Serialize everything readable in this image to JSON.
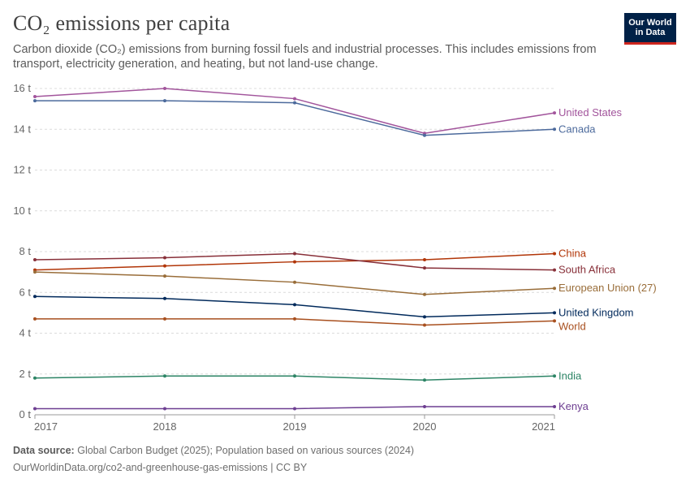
{
  "header": {
    "title": "CO₂ emissions per capita",
    "subtitle": "Carbon dioxide (CO₂) emissions from burning fossil fuels and industrial processes. This includes emissions from transport, electricity generation, and heating, but not land-use change.",
    "logo_line1": "Our World",
    "logo_line2": "in Data",
    "logo_bg": "#002147",
    "logo_accent": "#ce261e"
  },
  "footer": {
    "source_label": "Data source:",
    "source_text": "Global Carbon Budget (2025); Population based on various sources (2024)",
    "url_text": "OurWorldinData.org/co2-and-greenhouse-gas-emissions",
    "license_text": "| CC BY"
  },
  "chart_data": {
    "type": "line",
    "title": "CO₂ emissions per capita",
    "x": [
      2017,
      2018,
      2019,
      2020,
      2021
    ],
    "ylim": [
      0,
      16
    ],
    "yticks": [
      0,
      2,
      4,
      6,
      8,
      10,
      12,
      14,
      16
    ],
    "ytick_labels": [
      "0 t",
      "2 t",
      "4 t",
      "6 t",
      "8 t",
      "10 t",
      "12 t",
      "14 t",
      "16 t"
    ],
    "xtick_labels": [
      "2017",
      "2018",
      "2019",
      "2020",
      "2021"
    ],
    "grid": "horizontal dashed",
    "legend": "right (labels at line ends)",
    "series": [
      {
        "name": "United States",
        "color": "#a2559c",
        "values": [
          15.6,
          16.0,
          15.5,
          13.8,
          14.8
        ]
      },
      {
        "name": "Canada",
        "color": "#4c6a9c",
        "values": [
          15.4,
          15.4,
          15.3,
          13.7,
          14.0
        ]
      },
      {
        "name": "China",
        "color": "#b13507",
        "values": [
          7.1,
          7.3,
          7.5,
          7.6,
          7.9
        ]
      },
      {
        "name": "South Africa",
        "color": "#883039",
        "values": [
          7.6,
          7.7,
          7.9,
          7.2,
          7.1
        ]
      },
      {
        "name": "European Union (27)",
        "color": "#996d39",
        "values": [
          7.0,
          6.8,
          6.5,
          5.9,
          6.2
        ]
      },
      {
        "name": "United Kingdom",
        "color": "#00295b",
        "values": [
          5.8,
          5.7,
          5.4,
          4.8,
          5.0
        ]
      },
      {
        "name": "World",
        "color": "#a84f1e",
        "values": [
          4.7,
          4.7,
          4.7,
          4.4,
          4.6
        ]
      },
      {
        "name": "India",
        "color": "#2c8465",
        "values": [
          1.8,
          1.9,
          1.9,
          1.7,
          1.9
        ]
      },
      {
        "name": "Kenya",
        "color": "#6d3e91",
        "values": [
          0.3,
          0.3,
          0.3,
          0.4,
          0.4
        ]
      }
    ]
  }
}
